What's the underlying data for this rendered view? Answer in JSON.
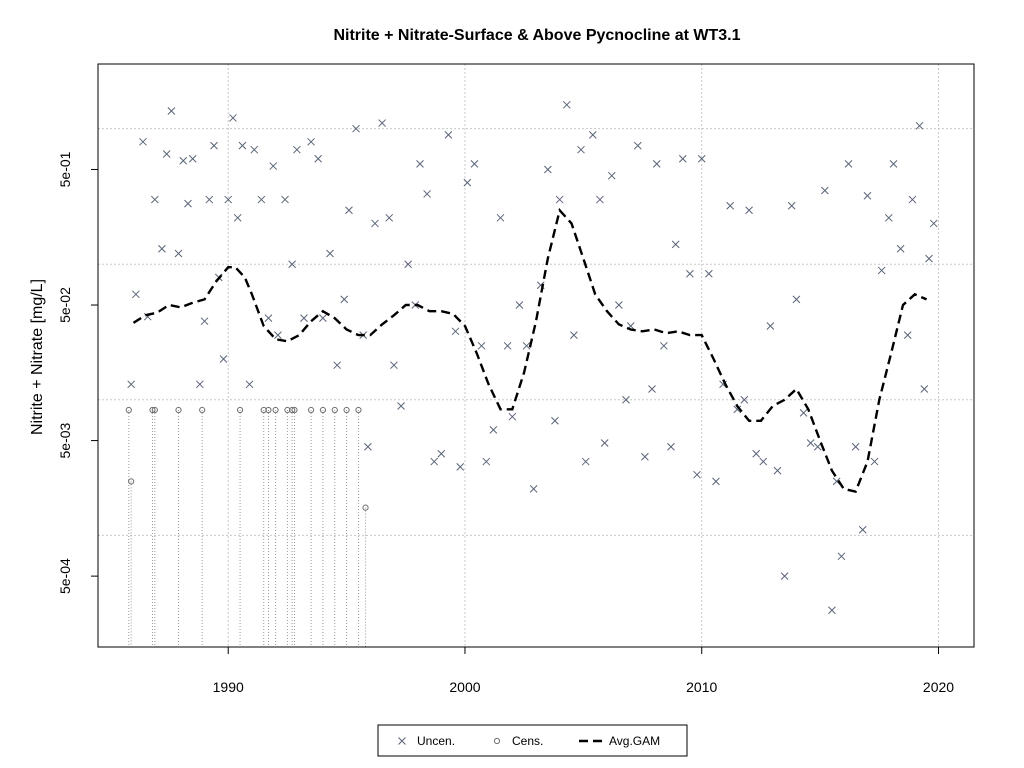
{
  "chart_data": {
    "type": "scatter",
    "title": "Nitrite + Nitrate-Surface & Above Pycnocline at WT3.1",
    "xlabel": "",
    "ylabel": "Nitrite + Nitrate [mg/L]",
    "xlim": [
      1984.5,
      2021.5
    ],
    "ylim": [
      0.00015,
      3.0
    ],
    "log_y": true,
    "x_ticks": [
      1990,
      2000,
      2010,
      2020
    ],
    "x_tick_labels": [
      "1990",
      "2000",
      "2010",
      "2020"
    ],
    "y_ticks": [
      0.0005,
      0.005,
      0.05,
      0.5
    ],
    "y_tick_labels": [
      "5e-04",
      "5e-03",
      "5e-02",
      "5e-01"
    ],
    "grid": true,
    "legend": {
      "position": "bottom",
      "entries": [
        {
          "label": "Uncen.",
          "symbol": "x"
        },
        {
          "label": "Cens.",
          "symbol": "o"
        },
        {
          "label": "Avg.GAM",
          "symbol": "dashed-line"
        }
      ]
    },
    "series": [
      {
        "name": "Uncen.",
        "points": [
          [
            1985.9,
            0.013
          ],
          [
            1986.1,
            0.06
          ],
          [
            1986.4,
            0.8
          ],
          [
            1986.6,
            0.041
          ],
          [
            1986.9,
            0.3
          ],
          [
            1987.2,
            0.13
          ],
          [
            1987.4,
            0.65
          ],
          [
            1987.6,
            1.35
          ],
          [
            1987.9,
            0.12
          ],
          [
            1988.1,
            0.58
          ],
          [
            1988.3,
            0.28
          ],
          [
            1988.5,
            0.6
          ],
          [
            1988.8,
            0.013
          ],
          [
            1989.0,
            0.038
          ],
          [
            1989.2,
            0.3
          ],
          [
            1989.4,
            0.75
          ],
          [
            1989.6,
            0.08
          ],
          [
            1989.8,
            0.02
          ],
          [
            1990.0,
            0.3
          ],
          [
            1990.2,
            1.2
          ],
          [
            1990.4,
            0.22
          ],
          [
            1990.6,
            0.75
          ],
          [
            1990.9,
            0.013
          ],
          [
            1991.1,
            0.7
          ],
          [
            1991.4,
            0.3
          ],
          [
            1991.7,
            0.04
          ],
          [
            1991.9,
            0.53
          ],
          [
            1992.1,
            0.03
          ],
          [
            1992.4,
            0.3
          ],
          [
            1992.7,
            0.1
          ],
          [
            1992.9,
            0.7
          ],
          [
            1993.2,
            0.04
          ],
          [
            1993.5,
            0.8
          ],
          [
            1993.8,
            0.6
          ],
          [
            1994.0,
            0.04
          ],
          [
            1994.3,
            0.12
          ],
          [
            1994.6,
            0.018
          ],
          [
            1994.9,
            0.055
          ],
          [
            1995.1,
            0.25
          ],
          [
            1995.4,
            1.0
          ],
          [
            1995.7,
            0.03
          ],
          [
            1995.9,
            0.0045
          ],
          [
            1996.2,
            0.2
          ],
          [
            1996.5,
            1.1
          ],
          [
            1996.8,
            0.22
          ],
          [
            1997.0,
            0.018
          ],
          [
            1997.3,
            0.009
          ],
          [
            1997.6,
            0.1
          ],
          [
            1997.9,
            0.05
          ],
          [
            1998.1,
            0.55
          ],
          [
            1998.4,
            0.33
          ],
          [
            1998.7,
            0.0035
          ],
          [
            1999.0,
            0.004
          ],
          [
            1999.3,
            0.9
          ],
          [
            1999.6,
            0.032
          ],
          [
            1999.8,
            0.0032
          ],
          [
            2000.1,
            0.4
          ],
          [
            2000.4,
            0.55
          ],
          [
            2000.7,
            0.025
          ],
          [
            2000.9,
            0.0035
          ],
          [
            2001.2,
            0.006
          ],
          [
            2001.5,
            0.22
          ],
          [
            2001.8,
            0.025
          ],
          [
            2002.0,
            0.0075
          ],
          [
            2002.3,
            0.05
          ],
          [
            2002.6,
            0.025
          ],
          [
            2002.9,
            0.0022
          ],
          [
            2003.2,
            0.07
          ],
          [
            2003.5,
            0.5
          ],
          [
            2003.8,
            0.007
          ],
          [
            2004.0,
            0.3
          ],
          [
            2004.3,
            1.5
          ],
          [
            2004.6,
            0.03
          ],
          [
            2004.9,
            0.7
          ],
          [
            2005.1,
            0.0035
          ],
          [
            2005.4,
            0.9
          ],
          [
            2005.7,
            0.3
          ],
          [
            2005.9,
            0.0048
          ],
          [
            2006.2,
            0.45
          ],
          [
            2006.5,
            0.05
          ],
          [
            2006.8,
            0.01
          ],
          [
            2007.0,
            0.035
          ],
          [
            2007.3,
            0.75
          ],
          [
            2007.6,
            0.0038
          ],
          [
            2007.9,
            0.012
          ],
          [
            2008.1,
            0.55
          ],
          [
            2008.4,
            0.025
          ],
          [
            2008.7,
            0.0045
          ],
          [
            2008.9,
            0.14
          ],
          [
            2009.2,
            0.6
          ],
          [
            2009.5,
            0.085
          ],
          [
            2009.8,
            0.0028
          ],
          [
            2010.0,
            0.6
          ],
          [
            2010.3,
            0.085
          ],
          [
            2010.6,
            0.0025
          ],
          [
            2010.9,
            0.013
          ],
          [
            2011.2,
            0.27
          ],
          [
            2011.5,
            0.0085
          ],
          [
            2011.8,
            0.01
          ],
          [
            2012.0,
            0.25
          ],
          [
            2012.3,
            0.004
          ],
          [
            2012.6,
            0.0035
          ],
          [
            2012.9,
            0.035
          ],
          [
            2013.2,
            0.003
          ],
          [
            2013.5,
            0.0005
          ],
          [
            2013.8,
            0.27
          ],
          [
            2014.0,
            0.055
          ],
          [
            2014.3,
            0.008
          ],
          [
            2014.6,
            0.0048
          ],
          [
            2014.9,
            0.0045
          ],
          [
            2015.2,
            0.35
          ],
          [
            2015.5,
            0.00028
          ],
          [
            2015.7,
            0.0025
          ],
          [
            2015.9,
            0.0007
          ],
          [
            2016.2,
            0.55
          ],
          [
            2016.5,
            0.0045
          ],
          [
            2016.8,
            0.0011
          ],
          [
            2017.0,
            0.32
          ],
          [
            2017.3,
            0.0035
          ],
          [
            2017.6,
            0.09
          ],
          [
            2017.9,
            0.22
          ],
          [
            2018.1,
            0.55
          ],
          [
            2018.4,
            0.13
          ],
          [
            2018.7,
            0.03
          ],
          [
            2018.9,
            0.3
          ],
          [
            2019.2,
            1.05
          ],
          [
            2019.4,
            0.012
          ],
          [
            2019.6,
            0.11
          ],
          [
            2019.8,
            0.2
          ]
        ]
      },
      {
        "name": "Cens.",
        "points": [
          [
            1985.8,
            0.0084
          ],
          [
            1985.9,
            0.0025
          ],
          [
            1986.8,
            0.0084
          ],
          [
            1986.9,
            0.0084
          ],
          [
            1987.9,
            0.0084
          ],
          [
            1988.9,
            0.0084
          ],
          [
            1990.5,
            0.0084
          ],
          [
            1991.5,
            0.0084
          ],
          [
            1991.7,
            0.0084
          ],
          [
            1992.0,
            0.0084
          ],
          [
            1992.5,
            0.0084
          ],
          [
            1992.7,
            0.0084
          ],
          [
            1992.8,
            0.0084
          ],
          [
            1993.5,
            0.0084
          ],
          [
            1994.0,
            0.0084
          ],
          [
            1994.5,
            0.0084
          ],
          [
            1995.0,
            0.0084
          ],
          [
            1995.5,
            0.0084
          ],
          [
            1995.8,
            0.0016
          ]
        ]
      },
      {
        "name": "Avg.GAM",
        "points": [
          [
            1986.0,
            0.037
          ],
          [
            1986.5,
            0.042
          ],
          [
            1987.0,
            0.044
          ],
          [
            1987.5,
            0.05
          ],
          [
            1988.0,
            0.048
          ],
          [
            1988.5,
            0.052
          ],
          [
            1989.0,
            0.055
          ],
          [
            1989.5,
            0.075
          ],
          [
            1990.0,
            0.095
          ],
          [
            1990.3,
            0.095
          ],
          [
            1990.7,
            0.08
          ],
          [
            1991.0,
            0.06
          ],
          [
            1991.5,
            0.035
          ],
          [
            1992.0,
            0.028
          ],
          [
            1992.5,
            0.027
          ],
          [
            1993.0,
            0.03
          ],
          [
            1993.5,
            0.038
          ],
          [
            1994.0,
            0.045
          ],
          [
            1994.5,
            0.04
          ],
          [
            1995.0,
            0.033
          ],
          [
            1995.5,
            0.03
          ],
          [
            1996.0,
            0.03
          ],
          [
            1996.5,
            0.036
          ],
          [
            1997.0,
            0.042
          ],
          [
            1997.5,
            0.05
          ],
          [
            1998.0,
            0.05
          ],
          [
            1998.5,
            0.045
          ],
          [
            1999.0,
            0.045
          ],
          [
            1999.5,
            0.043
          ],
          [
            2000.0,
            0.035
          ],
          [
            2000.5,
            0.022
          ],
          [
            2001.0,
            0.013
          ],
          [
            2001.5,
            0.0085
          ],
          [
            2002.0,
            0.0085
          ],
          [
            2002.5,
            0.016
          ],
          [
            2003.0,
            0.038
          ],
          [
            2003.5,
            0.11
          ],
          [
            2004.0,
            0.25
          ],
          [
            2004.5,
            0.2
          ],
          [
            2005.0,
            0.11
          ],
          [
            2005.5,
            0.06
          ],
          [
            2006.0,
            0.045
          ],
          [
            2006.5,
            0.036
          ],
          [
            2007.0,
            0.033
          ],
          [
            2007.5,
            0.032
          ],
          [
            2008.0,
            0.033
          ],
          [
            2008.5,
            0.031
          ],
          [
            2009.0,
            0.032
          ],
          [
            2009.5,
            0.03
          ],
          [
            2010.0,
            0.03
          ],
          [
            2010.5,
            0.02
          ],
          [
            2011.0,
            0.013
          ],
          [
            2011.5,
            0.009
          ],
          [
            2012.0,
            0.007
          ],
          [
            2012.5,
            0.007
          ],
          [
            2013.0,
            0.009
          ],
          [
            2013.5,
            0.01
          ],
          [
            2014.0,
            0.012
          ],
          [
            2014.5,
            0.0085
          ],
          [
            2015.0,
            0.005
          ],
          [
            2015.5,
            0.003
          ],
          [
            2016.0,
            0.0022
          ],
          [
            2016.5,
            0.0021
          ],
          [
            2017.0,
            0.0035
          ],
          [
            2017.5,
            0.01
          ],
          [
            2018.0,
            0.022
          ],
          [
            2018.5,
            0.05
          ],
          [
            2019.0,
            0.06
          ],
          [
            2019.5,
            0.055
          ]
        ]
      }
    ]
  }
}
